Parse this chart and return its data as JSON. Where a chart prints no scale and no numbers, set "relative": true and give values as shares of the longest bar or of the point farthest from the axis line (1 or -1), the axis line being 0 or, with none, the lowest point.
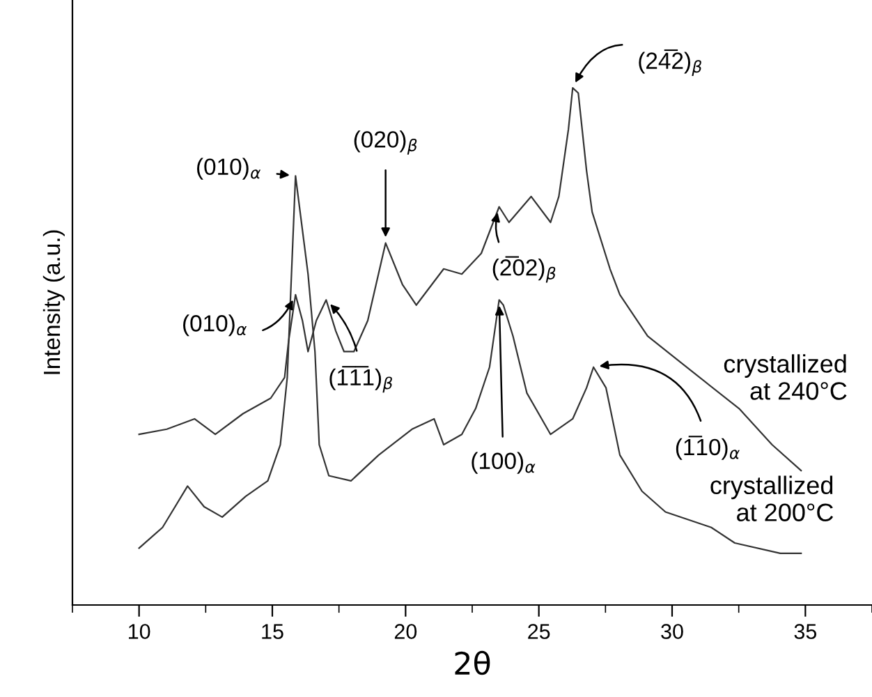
{
  "chart_data": {
    "type": "line",
    "relative": true,
    "xlabel": "2θ",
    "ylabel": "Intensity (a.u.)",
    "xlim": [
      7.5,
      37.5
    ],
    "xticks": [
      {
        "value": 7.5,
        "label": null
      },
      10,
      {
        "value": 12.5,
        "label": null
      },
      15,
      {
        "value": 17.5,
        "label": null
      },
      20,
      {
        "value": 22.5,
        "label": null
      },
      25,
      {
        "value": 27.5,
        "label": null
      },
      30,
      {
        "value": 32.5,
        "label": null
      },
      35,
      {
        "value": 37.5,
        "label": null
      }
    ],
    "grid": false,
    "legend": false,
    "marker": "none",
    "line_style": "solid",
    "series": [
      {
        "name": "crystallized\nat 240°C",
        "color": "#333333",
        "x": [
          10.0,
          11.04,
          12.08,
          12.86,
          13.9,
          14.94,
          15.46,
          15.61,
          15.87,
          16.13,
          16.34,
          16.65,
          17.02,
          17.38,
          17.69,
          18.06,
          18.58,
          19.25,
          19.88,
          20.4,
          21.43,
          22.11,
          22.84,
          23.51,
          23.88,
          24.71,
          25.44,
          25.75,
          26.11,
          26.27,
          26.48,
          26.79,
          27.0,
          27.67,
          28.04,
          29.08,
          30.79,
          32.51,
          33.75,
          34.84
        ],
        "values": [
          0.33,
          0.34,
          0.36,
          0.33,
          0.37,
          0.4,
          0.44,
          0.51,
          0.6,
          0.55,
          0.49,
          0.55,
          0.59,
          0.53,
          0.49,
          0.49,
          0.55,
          0.7,
          0.62,
          0.58,
          0.65,
          0.64,
          0.68,
          0.77,
          0.74,
          0.79,
          0.74,
          0.79,
          0.92,
          1.0,
          0.99,
          0.84,
          0.76,
          0.65,
          0.6,
          0.52,
          0.45,
          0.38,
          0.31,
          0.26
        ]
      },
      {
        "name": "crystallized\nat 200°C",
        "color": "#333333",
        "x": [
          10.0,
          10.88,
          11.82,
          12.44,
          13.12,
          14.0,
          14.83,
          15.3,
          15.56,
          15.87,
          16.34,
          16.6,
          16.76,
          17.12,
          17.95,
          18.99,
          20.24,
          21.07,
          21.43,
          22.11,
          22.63,
          23.15,
          23.51,
          23.67,
          24.03,
          24.55,
          25.44,
          26.27,
          26.79,
          27.05,
          27.52,
          28.04,
          28.87,
          29.75,
          31.47,
          32.35,
          34.06,
          34.84
        ],
        "values": [
          0.11,
          0.15,
          0.23,
          0.19,
          0.17,
          0.21,
          0.24,
          0.31,
          0.44,
          0.83,
          0.64,
          0.49,
          0.31,
          0.25,
          0.24,
          0.29,
          0.34,
          0.36,
          0.31,
          0.33,
          0.38,
          0.46,
          0.59,
          0.58,
          0.52,
          0.41,
          0.33,
          0.36,
          0.42,
          0.46,
          0.42,
          0.29,
          0.22,
          0.18,
          0.15,
          0.12,
          0.1,
          0.1
        ]
      }
    ],
    "annotations": [
      {
        "text": "(010)$_{α}$",
        "x": 15.87,
        "y": 0.83
      },
      {
        "text": "(010)$_{α}$",
        "x": 15.87,
        "y": 0.6
      },
      {
        "text": "(1̅1̅1)$_{β}$",
        "x": 17.02,
        "y": 0.59
      },
      {
        "text": "(020)$_{β}$",
        "x": 19.25,
        "y": 0.7
      },
      {
        "text": "(2̅02)$_{β}$",
        "x": 23.51,
        "y": 0.77
      },
      {
        "text": "(100)$_{α}$",
        "x": 23.51,
        "y": 0.59
      },
      {
        "text": "(24̅2)$_{β}$",
        "x": 26.27,
        "y": 1.0
      },
      {
        "text": "(1̅10)$_{α}$",
        "x": 27.05,
        "y": 0.46
      }
    ]
  }
}
